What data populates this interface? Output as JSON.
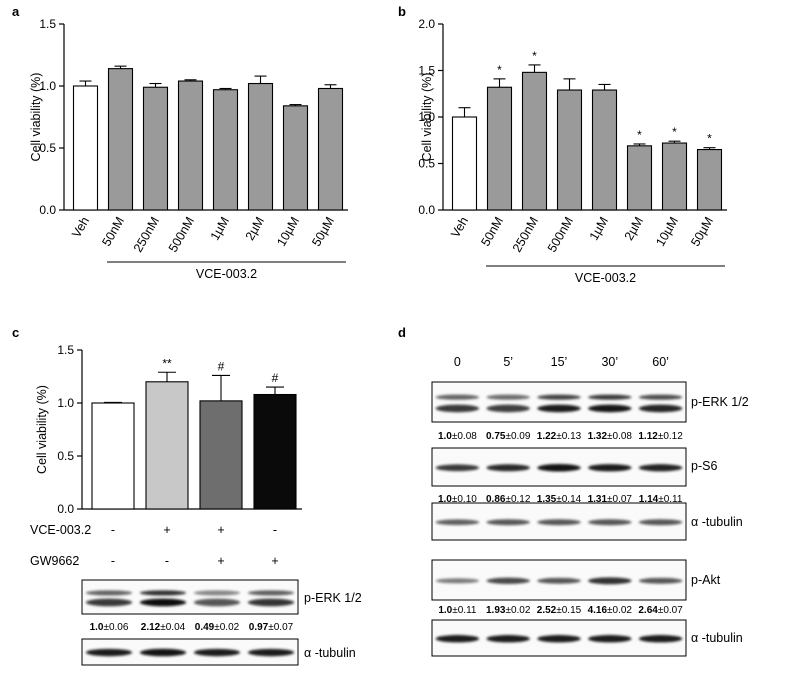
{
  "colors": {
    "bar_gray": "#9a9a9a",
    "veh_fill": "#ffffff",
    "c_colors": [
      "#ffffff",
      "#c8c8c8",
      "#6e6e6e",
      "#0a0a0a"
    ]
  },
  "chart_data": [
    {
      "panel": "a",
      "type": "bar",
      "title": "",
      "ylabel": "Cell viability (%)",
      "group_label": "VCE-003.2",
      "categories": [
        "Veh",
        "50nM",
        "250nM",
        "500nM",
        "1µM",
        "2µM",
        "10µM",
        "50µM"
      ],
      "values": [
        1.0,
        1.14,
        0.99,
        1.04,
        0.97,
        1.02,
        0.84,
        0.98
      ],
      "errors": [
        0.04,
        0.02,
        0.03,
        0.01,
        0.01,
        0.06,
        0.01,
        0.03
      ],
      "significance": [
        "",
        "",
        "",
        "",
        "",
        "",
        "",
        ""
      ],
      "ylim": [
        0,
        1.5
      ],
      "yticks": [
        "0.0",
        "0.5",
        "1.0",
        "1.5"
      ]
    },
    {
      "panel": "b",
      "type": "bar",
      "title": "",
      "ylabel": "Cell viability (%)",
      "group_label": "VCE-003.2",
      "categories": [
        "Veh",
        "50nM",
        "250nM",
        "500nM",
        "1µM",
        "2µM",
        "10µM",
        "50µM"
      ],
      "values": [
        1.0,
        1.32,
        1.48,
        1.29,
        1.29,
        0.69,
        0.72,
        0.65
      ],
      "errors": [
        0.1,
        0.09,
        0.08,
        0.12,
        0.06,
        0.02,
        0.02,
        0.02
      ],
      "significance": [
        "",
        "*",
        "*",
        "",
        "",
        "*",
        "*",
        "*"
      ],
      "ylim": [
        0,
        2.0
      ],
      "yticks": [
        "0.0",
        "0.5",
        "1.0",
        "1.5",
        "2.0"
      ]
    },
    {
      "panel": "c",
      "type": "bar",
      "title": "",
      "ylabel": "Cell viability (%)",
      "categories": [
        "Veh",
        "VCE-003.2",
        "VCE-003.2 + GW9662",
        "GW9662"
      ],
      "values": [
        1.0,
        1.2,
        1.02,
        1.08
      ],
      "errors": [
        0.005,
        0.09,
        0.24,
        0.07
      ],
      "significance": [
        "",
        "**",
        "#",
        "#"
      ],
      "ylim": [
        0,
        1.5
      ],
      "yticks": [
        "0.0",
        "0.5",
        "1.0",
        "1.5"
      ],
      "treatments": [
        {
          "name": "VCE-003.2",
          "signs": [
            "-",
            "+",
            "+",
            "-"
          ]
        },
        {
          "name": "GW9662",
          "signs": [
            "-",
            "-",
            "+",
            "+"
          ]
        }
      ]
    }
  ],
  "panel_c_blots": {
    "rows": [
      {
        "label": "p-ERK 1/2",
        "quant": [
          {
            "b": "1.0",
            "r": "±0.06"
          },
          {
            "b": "2.12",
            "r": "±0.04"
          },
          {
            "b": "0.49",
            "r": "±0.02"
          },
          {
            "b": "0.97",
            "r": "±0.07"
          }
        ]
      },
      {
        "label": "α -tubulin"
      }
    ]
  },
  "panel_d": {
    "timepoints": [
      "0",
      "5’",
      "15’",
      "30’",
      "60’"
    ],
    "rows": [
      {
        "label": "p-ERK 1/2",
        "quant": [
          {
            "b": "1.0",
            "r": "±0.08"
          },
          {
            "b": "0.75",
            "r": "±0.09"
          },
          {
            "b": "1.22",
            "r": "±0.13"
          },
          {
            "b": "1.32",
            "r": "±0.08"
          },
          {
            "b": "1.12",
            "r": "±0.12"
          }
        ]
      },
      {
        "label": "p-S6",
        "quant": [
          {
            "b": "1.0",
            "r": "±0.10"
          },
          {
            "b": "0.86",
            "r": "±0.12"
          },
          {
            "b": "1.35",
            "r": "±0.14"
          },
          {
            "b": "1.31",
            "r": "±0.07"
          },
          {
            "b": "1.14",
            "r": "±0.11"
          }
        ]
      },
      {
        "label": "α -tubulin"
      },
      {
        "label": "p-Akt",
        "quant": [
          {
            "b": "1.0",
            "r": "±0.11"
          },
          {
            "b": "1.93",
            "r": "±0.02"
          },
          {
            "b": "2.52",
            "r": "±0.15"
          },
          {
            "b": "4.16",
            "r": "±0.02"
          },
          {
            "b": "2.64",
            "r": "±0.07"
          }
        ]
      },
      {
        "label": "α -tubulin"
      }
    ]
  },
  "panel_labels": [
    "a",
    "b",
    "c",
    "d"
  ]
}
